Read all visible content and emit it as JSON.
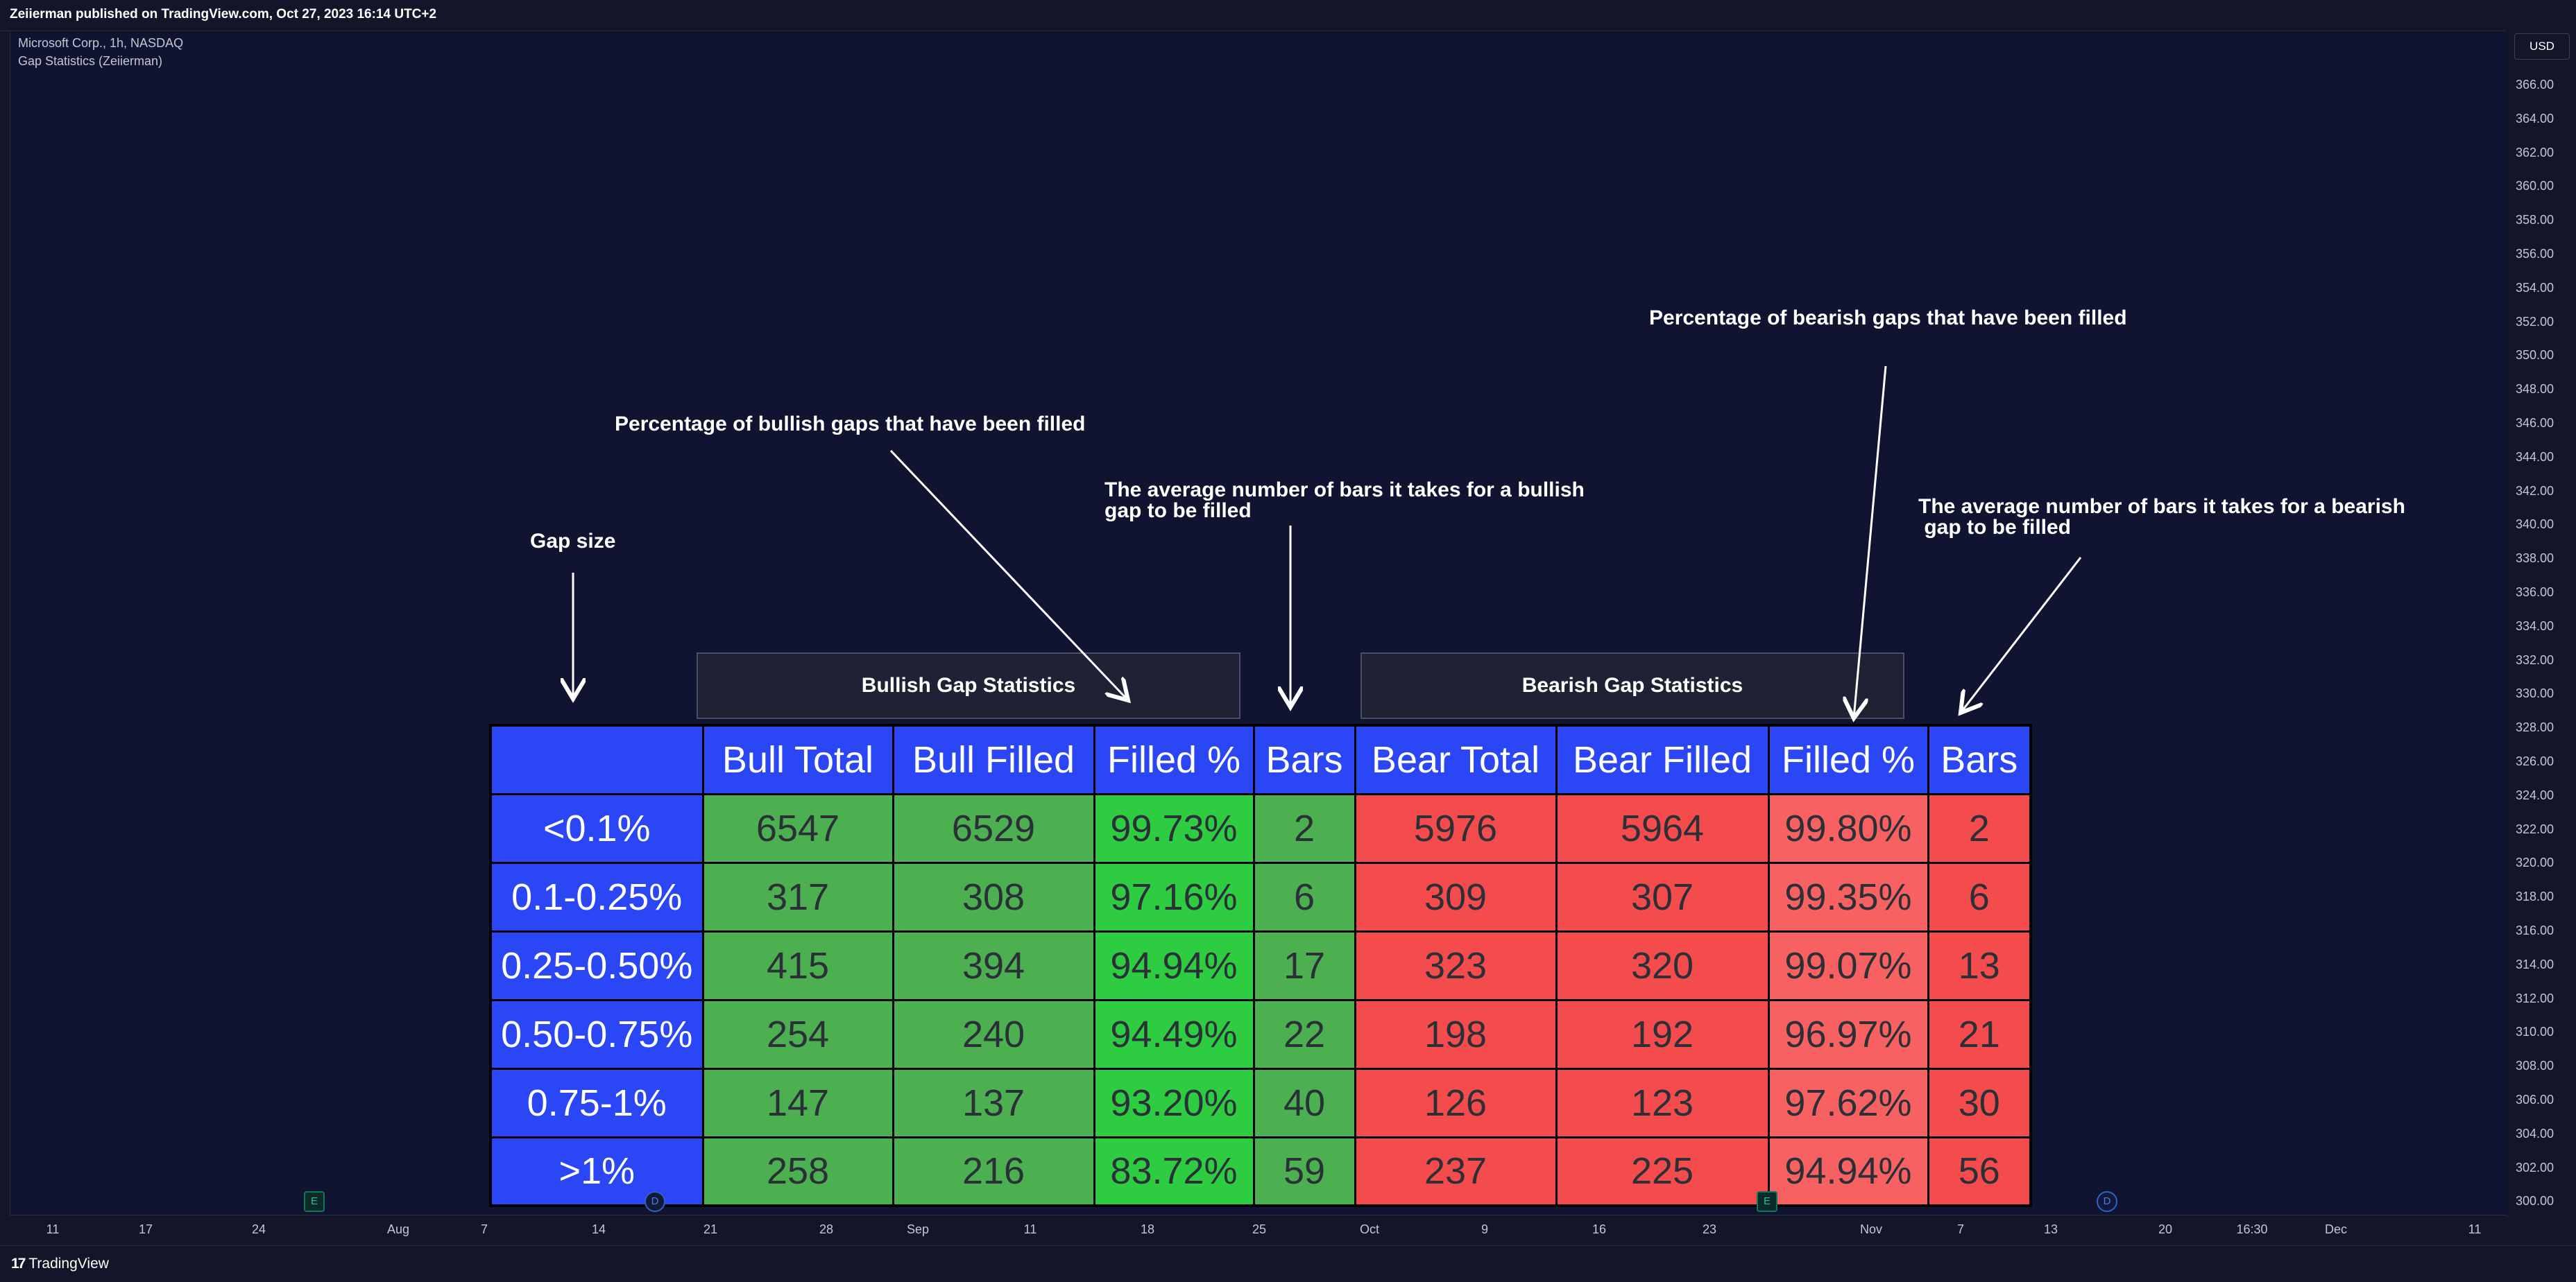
{
  "published_line": "Zeiierman published on TradingView.com, Oct 27, 2023 16:14 UTC+2",
  "legend": {
    "symbol_line": "Microsoft Corp., 1h, NASDAQ",
    "indicator_line": "Gap Statistics (Zeiierman)"
  },
  "currency_button": "USD",
  "price_ticks": [
    "366.00",
    "364.00",
    "362.00",
    "360.00",
    "358.00",
    "356.00",
    "354.00",
    "352.00",
    "350.00",
    "348.00",
    "346.00",
    "344.00",
    "342.00",
    "340.00",
    "338.00",
    "336.00",
    "334.00",
    "332.00",
    "330.00",
    "328.00",
    "326.00",
    "324.00",
    "322.00",
    "320.00",
    "318.00",
    "316.00",
    "314.00",
    "312.00",
    "310.00",
    "308.00",
    "306.00",
    "304.00",
    "302.00",
    "300.00"
  ],
  "time_ticks": [
    "11",
    "17",
    "24",
    "Aug",
    "7",
    "14",
    "21",
    "28",
    "Sep",
    "11",
    "18",
    "25",
    "Oct",
    "9",
    "16",
    "23",
    "Nov",
    "7",
    "13",
    "20",
    "16:30",
    "Dec",
    "11"
  ],
  "footer_brand": "TradingView",
  "footer_brand_mark": "17",
  "section_headers": {
    "bullish": "Bullish Gap Statistics",
    "bearish": "Bearish Gap Statistics"
  },
  "annotations": {
    "gap_size": "Gap size",
    "bull_pct": "Percentage of bullish gaps that have been filled",
    "bull_bars": "The average number of bars it takes for a bullish\ngap to be filled",
    "bear_pct": "Percentage of bearish gaps that have been filled",
    "bear_bars": "The average number of bars it takes for a bearish\n gap to be filled"
  },
  "table": {
    "headers": [
      "",
      "Bull Total",
      "Bull Filled",
      "Filled %",
      "Bars",
      "Bear Total",
      "Bear Filled",
      "Filled %",
      "Bars"
    ],
    "rows": [
      [
        "<0.1%",
        "6547",
        "6529",
        "99.73%",
        "2",
        "5976",
        "5964",
        "99.80%",
        "2"
      ],
      [
        "0.1-0.25%",
        "317",
        "308",
        "97.16%",
        "6",
        "309",
        "307",
        "99.35%",
        "6"
      ],
      [
        "0.25-0.50%",
        "415",
        "394",
        "94.94%",
        "17",
        "323",
        "320",
        "99.07%",
        "13"
      ],
      [
        "0.50-0.75%",
        "254",
        "240",
        "94.49%",
        "22",
        "198",
        "192",
        "96.97%",
        "21"
      ],
      [
        "0.75-1%",
        "147",
        "137",
        "93.20%",
        "40",
        "126",
        "123",
        "97.62%",
        "30"
      ],
      [
        ">1%",
        "258",
        "216",
        "83.72%",
        "59",
        "237",
        "225",
        "94.94%",
        "56"
      ]
    ]
  },
  "markers": {
    "earnings_label": "E",
    "dividend_label": "D"
  },
  "colors": {
    "header_blue": "#2a46f5",
    "bull_green": "#4caf50",
    "bull_pct_green": "#2ecc40",
    "bear_red": "#f44c4c",
    "bear_pct_red": "#f86161",
    "background": "#111430"
  }
}
